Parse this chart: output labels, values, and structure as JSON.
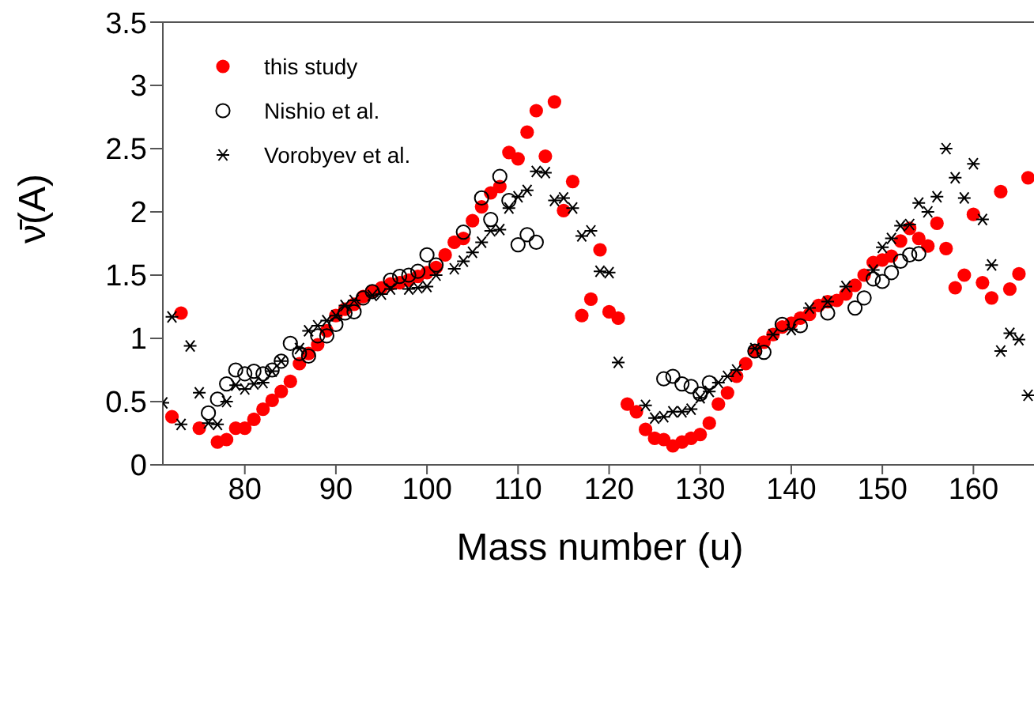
{
  "chart_data": {
    "type": "scatter",
    "xlabel": "Mass number (u)",
    "ylabel": "ν̄(A)",
    "xlim": [
      71,
      167
    ],
    "xticks": [
      80,
      90,
      100,
      110,
      120,
      130,
      140,
      150,
      160
    ],
    "ylim": [
      0,
      3.5
    ],
    "yticks": [
      0,
      0.5,
      1,
      1.5,
      2,
      2.5,
      3,
      3.5
    ],
    "legend": "top left",
    "series": [
      {
        "name": "this study",
        "color": "#ff0000",
        "marker": "circle",
        "x": [
          72,
          73,
          75,
          77,
          78,
          79,
          80,
          81,
          82,
          83,
          84,
          85,
          86,
          87,
          88,
          89,
          90,
          91,
          92,
          93,
          94,
          95,
          96,
          97,
          98,
          99,
          100,
          101,
          102,
          103,
          104,
          105,
          106,
          107,
          108,
          109,
          110,
          111,
          112,
          113,
          114,
          115,
          116,
          117,
          118,
          119,
          120,
          121,
          122,
          123,
          124,
          125,
          126,
          127,
          128,
          129,
          130,
          131,
          132,
          133,
          134,
          135,
          136,
          137,
          138,
          139,
          140,
          141,
          142,
          143,
          144,
          145,
          146,
          147,
          148,
          149,
          150,
          151,
          152,
          153,
          154,
          155,
          156,
          157,
          158,
          159,
          160,
          161,
          162,
          163,
          164,
          165,
          166
        ],
        "values": [
          0.38,
          1.2,
          0.29,
          0.18,
          0.2,
          0.29,
          0.29,
          0.36,
          0.44,
          0.51,
          0.58,
          0.66,
          0.8,
          0.88,
          0.95,
          1.06,
          1.18,
          1.23,
          1.27,
          1.33,
          1.37,
          1.4,
          1.43,
          1.44,
          1.46,
          1.49,
          1.52,
          1.56,
          1.66,
          1.76,
          1.79,
          1.93,
          2.04,
          2.15,
          2.2,
          2.47,
          2.42,
          2.63,
          2.8,
          2.44,
          2.87,
          2.01,
          2.24,
          1.18,
          1.31,
          1.7,
          1.21,
          1.16,
          0.48,
          0.42,
          0.28,
          0.21,
          0.2,
          0.15,
          0.18,
          0.21,
          0.24,
          0.33,
          0.48,
          0.57,
          0.7,
          0.8,
          0.9,
          0.97,
          1.03,
          1.09,
          1.12,
          1.16,
          1.19,
          1.26,
          1.29,
          1.3,
          1.35,
          1.42,
          1.5,
          1.6,
          1.62,
          1.65,
          1.77,
          1.87,
          1.79,
          1.73,
          1.91,
          1.71,
          1.4,
          1.5,
          1.98,
          1.44,
          1.32,
          2.16,
          1.39,
          1.51,
          2.27
        ]
      },
      {
        "name": "Nishio et al.",
        "color": "#000000",
        "marker": "circle",
        "x": [
          76,
          77,
          78,
          79,
          80,
          81,
          82,
          83,
          84,
          85,
          86,
          87,
          88,
          89,
          90,
          91,
          92,
          93,
          94,
          96,
          97,
          98,
          99,
          100,
          101,
          104,
          106,
          107,
          108,
          109,
          110,
          111,
          112,
          126,
          127,
          128,
          129,
          130,
          131,
          136,
          137,
          139,
          141,
          144,
          147,
          148,
          149,
          150,
          151,
          152,
          153,
          154
        ],
        "values": [
          0.41,
          0.52,
          0.64,
          0.75,
          0.72,
          0.74,
          0.72,
          0.75,
          0.82,
          0.96,
          0.88,
          0.86,
          1.02,
          1.02,
          1.11,
          1.2,
          1.21,
          1.32,
          1.37,
          1.46,
          1.49,
          1.5,
          1.53,
          1.66,
          1.58,
          1.84,
          2.11,
          1.94,
          2.28,
          2.09,
          1.74,
          1.82,
          1.76,
          0.68,
          0.7,
          0.64,
          0.62,
          0.56,
          0.65,
          0.9,
          0.89,
          1.11,
          1.1,
          1.2,
          1.24,
          1.32,
          1.47,
          1.45,
          1.52,
          1.61,
          1.66,
          1.67
        ]
      },
      {
        "name": "Vorobyev et al.",
        "color": "#000000",
        "marker": "cross",
        "x": [
          71,
          72,
          73,
          74,
          75,
          76,
          77,
          78,
          79,
          80,
          81,
          82,
          83,
          84,
          86,
          87,
          88,
          89,
          90,
          91,
          92,
          94,
          95,
          96,
          98,
          99,
          100,
          101,
          103,
          104,
          105,
          106,
          107,
          108,
          109,
          110,
          111,
          112,
          113,
          114,
          115,
          116,
          117,
          118,
          119,
          120,
          121,
          124,
          125,
          126,
          127,
          128,
          129,
          130,
          131,
          132,
          133,
          134,
          136,
          138,
          140,
          142,
          144,
          146,
          149,
          150,
          151,
          152,
          153,
          154,
          155,
          156,
          157,
          158,
          159,
          160,
          161,
          162,
          163,
          164,
          165,
          166
        ],
        "values": [
          0.49,
          1.17,
          0.32,
          0.94,
          0.57,
          0.33,
          0.32,
          0.5,
          0.63,
          0.6,
          0.64,
          0.65,
          0.74,
          0.82,
          0.92,
          1.06,
          1.1,
          1.14,
          1.18,
          1.26,
          1.3,
          1.34,
          1.35,
          1.39,
          1.39,
          1.4,
          1.41,
          1.5,
          1.55,
          1.61,
          1.68,
          1.76,
          1.85,
          1.86,
          2.03,
          2.12,
          2.17,
          2.32,
          2.31,
          2.09,
          2.11,
          2.03,
          1.81,
          1.85,
          1.53,
          1.52,
          0.81,
          0.47,
          0.37,
          0.38,
          0.42,
          0.42,
          0.44,
          0.53,
          0.58,
          0.65,
          0.7,
          0.75,
          0.92,
          1.03,
          1.07,
          1.24,
          1.29,
          1.41,
          1.54,
          1.72,
          1.79,
          1.89,
          1.9,
          2.07,
          2,
          2.12,
          2.5,
          2.27,
          2.11,
          2.38,
          1.94,
          1.58,
          0.9,
          1.04,
          0.99,
          0.55
        ]
      }
    ]
  }
}
